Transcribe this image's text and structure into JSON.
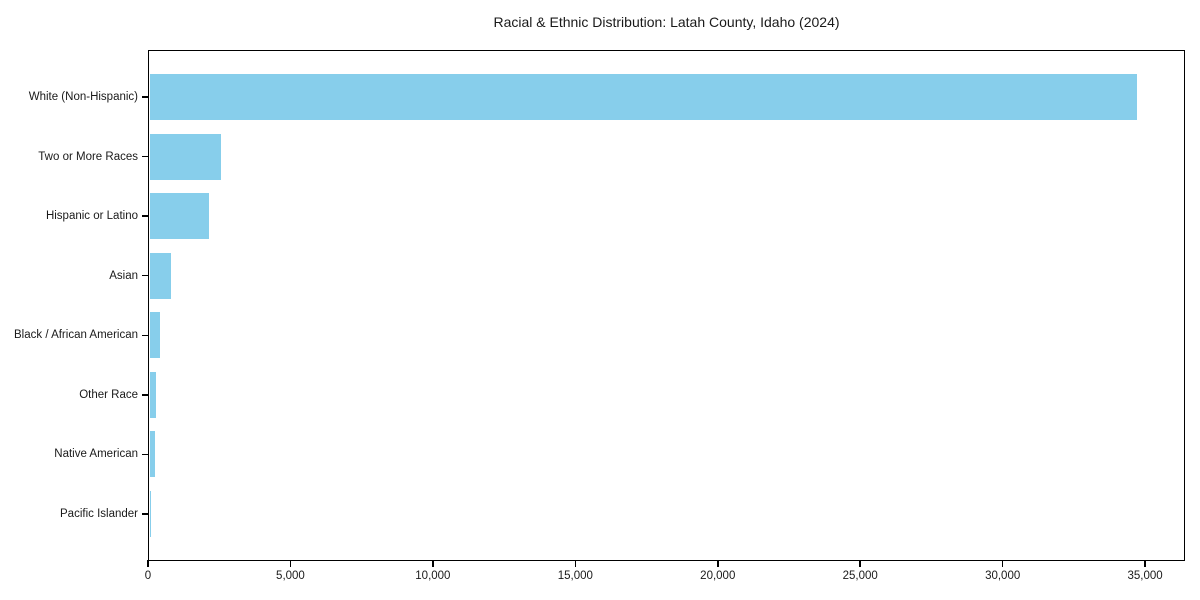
{
  "title": "Racial & Ethnic Distribution: Latah County, Idaho (2024)",
  "colors": {
    "bar": "#87CEEB",
    "axis": "#000000",
    "text": "#1a1a1a",
    "background": "#ffffff"
  },
  "chart_data": {
    "type": "bar",
    "orientation": "horizontal",
    "title": "Racial & Ethnic Distribution: Latah County, Idaho (2024)",
    "xlabel": "",
    "ylabel": "",
    "categories": [
      "White (Non-Hispanic)",
      "Two or More Races",
      "Hispanic or Latino",
      "Asian",
      "Black / African American",
      "Other Race",
      "Native American",
      "Pacific Islander"
    ],
    "values": [
      34700,
      2550,
      2150,
      800,
      430,
      275,
      240,
      110
    ],
    "xlim": [
      0,
      36400
    ],
    "xticks": [
      0,
      5000,
      10000,
      15000,
      20000,
      25000,
      30000,
      35000
    ],
    "xtick_labels": [
      "0",
      "5,000",
      "10,000",
      "15,000",
      "20,000",
      "25,000",
      "30,000",
      "35,000"
    ],
    "bar_color": "#87CEEB",
    "grid": false,
    "legend": "none"
  }
}
